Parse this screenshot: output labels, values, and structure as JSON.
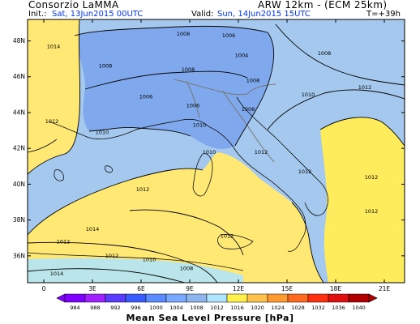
{
  "header": {
    "org": "Consorzio LaMMA",
    "model": "ARW 12km - (ECM 25km)",
    "init_label": "Init.:",
    "init_value": "Sat, 13Jun2015 00UTC",
    "valid_label": "Valid:",
    "valid_value": "Sun, 14Jun2015 15UTC",
    "lead": "T=+39h"
  },
  "axes": {
    "lon_ticks": [
      "0",
      "3E",
      "6E",
      "9E",
      "12E",
      "15E",
      "18E",
      "21E"
    ],
    "lat_ticks": [
      "48N",
      "46N",
      "44N",
      "42N",
      "40N",
      "38N",
      "36N"
    ]
  },
  "colorbar": {
    "title": "Mean Sea Level Pressure [hPa]",
    "values": [
      "984",
      "988",
      "992",
      "996",
      "1000",
      "1004",
      "1008",
      "1012",
      "1016",
      "1020",
      "1024",
      "1028",
      "1032",
      "1036",
      "1040"
    ],
    "colors": [
      "#7f00ff",
      "#a020ff",
      "#5a3cff",
      "#3a5cff",
      "#5a8cff",
      "#7aaaff",
      "#8fb5ee",
      "#aee4ff",
      "#fff04a",
      "#ffc24a",
      "#ff9a30",
      "#ff6a20",
      "#ff3010",
      "#e01010",
      "#b00000"
    ]
  },
  "map": {
    "colors": {
      "low": "#7fa9ec",
      "mid": "#a4c8ee",
      "high": "#ffe873",
      "land_high": "#ffec5c"
    },
    "isobar_labels": [
      {
        "t": "1014",
        "lon": 0.6,
        "lat": 47.6
      },
      {
        "t": "1008",
        "lon": 8.6,
        "lat": 48.3
      },
      {
        "t": "1006",
        "lon": 11.4,
        "lat": 48.2
      },
      {
        "t": "1008",
        "lon": 17.3,
        "lat": 47.2
      },
      {
        "t": "1008",
        "lon": 3.8,
        "lat": 46.5
      },
      {
        "t": "1004",
        "lon": 12.2,
        "lat": 47.1
      },
      {
        "t": "1008",
        "lon": 8.9,
        "lat": 46.3
      },
      {
        "t": "1008",
        "lon": 12.9,
        "lat": 45.7
      },
      {
        "t": "1006",
        "lon": 6.3,
        "lat": 44.8
      },
      {
        "t": "1006",
        "lon": 9.2,
        "lat": 44.3
      },
      {
        "t": "1008",
        "lon": 12.6,
        "lat": 44.1
      },
      {
        "t": "1010",
        "lon": 16.3,
        "lat": 44.9
      },
      {
        "t": "1012",
        "lon": 19.8,
        "lat": 45.3
      },
      {
        "t": "1012",
        "lon": 0.5,
        "lat": 43.4
      },
      {
        "t": "1010",
        "lon": 3.6,
        "lat": 42.8
      },
      {
        "t": "1010",
        "lon": 9.6,
        "lat": 43.2
      },
      {
        "t": "1010",
        "lon": 10.2,
        "lat": 41.7
      },
      {
        "t": "1012",
        "lon": 13.4,
        "lat": 41.7
      },
      {
        "t": "1012",
        "lon": 16.1,
        "lat": 40.6
      },
      {
        "t": "1012",
        "lon": 20.2,
        "lat": 40.3
      },
      {
        "t": "1012",
        "lon": 6.1,
        "lat": 39.6
      },
      {
        "t": "1012",
        "lon": 20.2,
        "lat": 38.4
      },
      {
        "t": "1014",
        "lon": 3.0,
        "lat": 37.4
      },
      {
        "t": "1012",
        "lon": 11.3,
        "lat": 37.0
      },
      {
        "t": "1012",
        "lon": 1.2,
        "lat": 36.7
      },
      {
        "t": "1012",
        "lon": 4.2,
        "lat": 35.9
      },
      {
        "t": "1010",
        "lon": 6.5,
        "lat": 35.7
      },
      {
        "t": "1008",
        "lon": 8.8,
        "lat": 35.2
      },
      {
        "t": "1014",
        "lon": 0.8,
        "lat": 34.9
      }
    ]
  }
}
